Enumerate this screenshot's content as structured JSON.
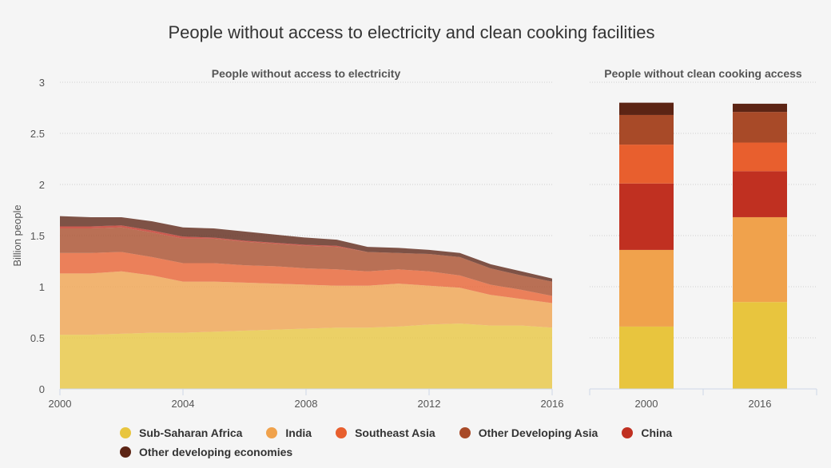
{
  "chart_data": [
    {
      "type": "area",
      "title": "People without access to electricity and clean cooking facilities",
      "subtitle": "People without access to electricity",
      "ylabel": "Billion people",
      "xlim": [
        2000,
        2016
      ],
      "ylim": [
        0,
        3
      ],
      "x_ticks": [
        "2000",
        "2004",
        "2008",
        "2012",
        "2016"
      ],
      "y_ticks": [
        "0",
        "0.5",
        "1",
        "1.5",
        "2",
        "2.5",
        "3"
      ],
      "grid": true,
      "stacked": true,
      "x": [
        2000,
        2001,
        2002,
        2003,
        2004,
        2005,
        2006,
        2007,
        2008,
        2009,
        2010,
        2011,
        2012,
        2013,
        2014,
        2015,
        2016
      ],
      "series": [
        {
          "name": "Sub-Saharan Africa",
          "values": [
            0.53,
            0.53,
            0.54,
            0.55,
            0.55,
            0.56,
            0.57,
            0.58,
            0.59,
            0.6,
            0.6,
            0.61,
            0.63,
            0.64,
            0.62,
            0.62,
            0.6
          ]
        },
        {
          "name": "India",
          "values": [
            0.6,
            0.6,
            0.61,
            0.56,
            0.5,
            0.49,
            0.47,
            0.45,
            0.43,
            0.41,
            0.41,
            0.42,
            0.38,
            0.35,
            0.3,
            0.26,
            0.24
          ]
        },
        {
          "name": "Southeast Asia",
          "values": [
            0.2,
            0.2,
            0.19,
            0.18,
            0.18,
            0.18,
            0.17,
            0.17,
            0.16,
            0.16,
            0.14,
            0.14,
            0.14,
            0.12,
            0.1,
            0.09,
            0.07
          ]
        },
        {
          "name": "Other Developing Asia",
          "values": [
            0.24,
            0.24,
            0.24,
            0.24,
            0.24,
            0.24,
            0.23,
            0.22,
            0.22,
            0.22,
            0.19,
            0.16,
            0.17,
            0.18,
            0.16,
            0.14,
            0.14
          ]
        },
        {
          "name": "China",
          "values": [
            0.02,
            0.02,
            0.02,
            0.02,
            0.02,
            0.01,
            0.01,
            0.01,
            0.01,
            0.01,
            0.0,
            0.0,
            0.0,
            0.0,
            0.0,
            0.0,
            0.0
          ]
        },
        {
          "name": "Other developing economies",
          "values": [
            0.1,
            0.09,
            0.08,
            0.09,
            0.09,
            0.09,
            0.09,
            0.08,
            0.07,
            0.06,
            0.05,
            0.05,
            0.04,
            0.04,
            0.04,
            0.04,
            0.03
          ]
        }
      ]
    },
    {
      "type": "bar",
      "subtitle": "People without clean cooking access",
      "stacked": true,
      "categories": [
        "2000",
        "2016"
      ],
      "ylim": [
        0,
        3
      ],
      "series": [
        {
          "name": "Sub-Saharan Africa",
          "values": [
            0.61,
            0.85
          ]
        },
        {
          "name": "India",
          "values": [
            0.75,
            0.83
          ]
        },
        {
          "name": "China",
          "values": [
            0.65,
            0.45
          ]
        },
        {
          "name": "Southeast Asia",
          "values": [
            0.38,
            0.28
          ]
        },
        {
          "name": "Other Developing Asia",
          "values": [
            0.29,
            0.3
          ]
        },
        {
          "name": "Other developing economies",
          "values": [
            0.12,
            0.08
          ]
        }
      ]
    }
  ],
  "legend": [
    {
      "label": "Sub-Saharan Africa",
      "color": "#e8c53e"
    },
    {
      "label": "India",
      "color": "#f0a24c"
    },
    {
      "label": "Southeast Asia",
      "color": "#e85f2e"
    },
    {
      "label": "Other Developing Asia",
      "color": "#a84a28"
    },
    {
      "label": "China",
      "color": "#c03021"
    },
    {
      "label": "Other developing economies",
      "color": "#5c2414"
    }
  ],
  "colors": {
    "Sub-Saharan Africa": "#e8c53e",
    "India": "#f0a24c",
    "Southeast Asia": "#e85f2e",
    "Other Developing Asia": "#a84a28",
    "China": "#c03021",
    "Other developing economies": "#5c2414"
  }
}
